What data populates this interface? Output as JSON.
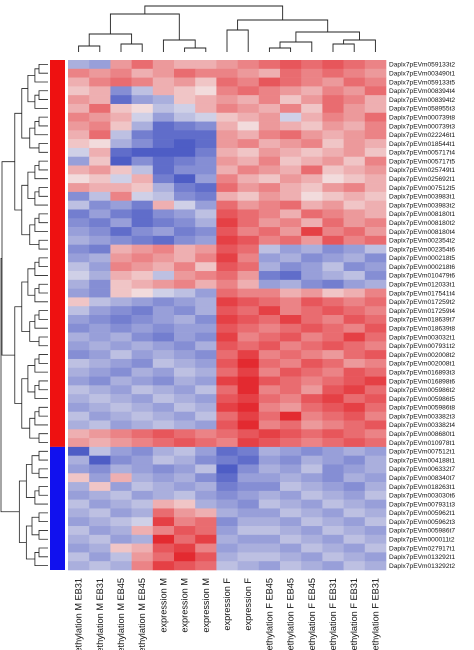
{
  "chart_data": {
    "type": "heatmap",
    "title": "",
    "columns": [
      "methylation M EB31",
      "methylation M EB31",
      "methylation M EB45",
      "methylation M EB45",
      "expression M",
      "expression M",
      "expression M",
      "expression F",
      "expression F",
      "methylation F EB45",
      "methylation F EB45",
      "methylation F EB45",
      "methylation F EB31",
      "methylation F EB31",
      "methylation F EB31"
    ],
    "rows": [
      "Daplx7pEVm059133t2",
      "Daplx7pEVm003490t1",
      "Daplx7pEVm059133t5",
      "Daplx7pEVm008394t4",
      "Daplx7pEVm008394t2",
      "Daplx7pEVm058955t3",
      "Daplx7pEVm000739t8",
      "Daplx7pEVm000739t3",
      "Daplx7pEVm022246t1",
      "Daplx7pEVm018544t1",
      "Daplx7pEVm005717t4",
      "Daplx7pEVm005717t5",
      "Daplx7pEVm025749t1",
      "Daplx7pEVm025692t1",
      "Daplx7pEVm007512t5",
      "Daplx7pEVm003983t1",
      "Daplx7pEVm003983t2",
      "Daplx7pEVm008180t1",
      "Daplx7pEVm008180t2",
      "Daplx7pEVm008180t4",
      "Daplx7pEVm002354t2",
      "Daplx7pEVm002354t6",
      "Daplx7pEVm000218t5",
      "Daplx7pEVm000218t6",
      "Daplx7pEVm010479t6",
      "Daplx7pEVm012033t1",
      "Daplx7pEVm017541t4",
      "Daplx7pEVm017259t2",
      "Daplx7pEVm017259t4",
      "Daplx7pEVm018639t7",
      "Daplx7pEVm018639t8",
      "Daplx7pEVm003032t1",
      "Daplx7pEVm007931t2",
      "Daplx7pEVm002008t2",
      "Daplx7pEVm002008t1",
      "Daplx7pEVm016893t3",
      "Daplx7pEVm016898t6",
      "Daplx7pEVm005986t2",
      "Daplx7pEVm005986t5",
      "Daplx7pEVm005986t8",
      "Daplx7pEVm003382t3",
      "Daplx7pEVm003382t4",
      "Daplx7pEVm008680t1",
      "Daplx7pEVm010978t1",
      "Daplx7pEVm007512t1",
      "Daplx7pEVm004188t1",
      "Daplx7pEVm006332t7",
      "Daplx7pEVm008340t7",
      "Daplx7pEVm018263t1",
      "Daplx7pEVm003030t6",
      "Daplx7pEVm007931t3",
      "Daplx7pEVm005962t1",
      "Daplx7pEVm005962t3",
      "Daplx7pEVm005986t7",
      "Daplx7pEVm000011t2",
      "Daplx7pEVm027917t1",
      "Daplx7pEVm013292t1",
      "Daplx7pEVm013292t2"
    ],
    "row_groups": [
      {
        "color": "#ee1111",
        "first_row": 0,
        "last_row": 43
      },
      {
        "color": "#1111ee",
        "first_row": 44,
        "last_row": 57
      }
    ],
    "colorscale": {
      "low": "#3b4cc0",
      "mid": "#f4f1f1",
      "high": "#e1141a"
    },
    "values": [
      [
        -0.4,
        -0.5,
        0.4,
        0.6,
        0.4,
        0.3,
        0.3,
        0.4,
        0.5,
        0.6,
        0.7,
        0.6,
        0.7,
        0.6,
        0.5
      ],
      [
        0.5,
        0.4,
        0.5,
        0.3,
        0.4,
        0.6,
        0.5,
        0.5,
        0.4,
        0.3,
        0.6,
        0.5,
        0.6,
        0.5,
        0.4
      ],
      [
        0.3,
        0.5,
        0.6,
        0.5,
        0.3,
        0.4,
        0.2,
        0.6,
        0.5,
        0.7,
        0.6,
        0.5,
        0.4,
        0.6,
        0.5
      ],
      [
        0.2,
        0.3,
        -0.6,
        -0.3,
        0.3,
        0.2,
        0.1,
        0.5,
        0.6,
        0.5,
        0.4,
        0.3,
        0.5,
        0.4,
        0.6
      ],
      [
        0.4,
        0.3,
        -0.8,
        -0.5,
        -0.4,
        0.2,
        0.3,
        0.4,
        0.3,
        0.5,
        0.2,
        0.4,
        0.6,
        0.5,
        0.3
      ],
      [
        0.3,
        0.6,
        0.2,
        0.1,
        -0.3,
        -0.2,
        0.3,
        0.5,
        0.4,
        0.3,
        0.5,
        0.2,
        0.6,
        0.4,
        0.3
      ],
      [
        0.5,
        0.4,
        0.3,
        -0.2,
        -0.5,
        -0.3,
        -0.2,
        0.2,
        0.3,
        0.4,
        -0.2,
        0.3,
        0.5,
        0.4,
        0.6
      ],
      [
        0.4,
        0.5,
        0.2,
        -0.4,
        -0.8,
        -0.7,
        -0.6,
        0.3,
        0.1,
        0.4,
        0.3,
        0.2,
        0.4,
        0.3,
        0.5
      ],
      [
        0.3,
        0.6,
        -0.3,
        -0.7,
        -0.8,
        -0.8,
        -0.8,
        0.4,
        0.3,
        0.5,
        0.6,
        0.4,
        0.3,
        0.4,
        0.5
      ],
      [
        0.2,
        0.1,
        -0.4,
        -0.6,
        -0.8,
        -0.9,
        -0.8,
        0.4,
        0.5,
        0.3,
        0.4,
        0.5,
        0.2,
        0.4,
        0.3
      ],
      [
        -0.2,
        0.3,
        -0.8,
        -0.9,
        -0.9,
        -0.9,
        -0.7,
        0.3,
        0.2,
        0.4,
        0.3,
        0.2,
        0.3,
        0.4,
        0.2
      ],
      [
        -0.5,
        0.2,
        -0.9,
        -0.6,
        -0.8,
        -0.7,
        -0.6,
        0.4,
        0.3,
        0.5,
        0.2,
        0.3,
        0.4,
        0.2,
        0.5
      ],
      [
        0.3,
        0.4,
        0.2,
        -0.3,
        -0.8,
        -0.6,
        -0.6,
        0.3,
        0.5,
        0.4,
        0.3,
        0.6,
        0.2,
        0.3,
        0.4
      ],
      [
        0.1,
        0.2,
        -0.2,
        0.3,
        -0.7,
        -0.9,
        -0.5,
        0.5,
        0.3,
        0.2,
        0.4,
        0.3,
        0.1,
        0.2,
        0.3
      ],
      [
        0.4,
        0.3,
        0.3,
        0.2,
        -0.4,
        -0.7,
        -0.8,
        0.6,
        0.4,
        0.5,
        0.3,
        0.2,
        0.4,
        0.5,
        0.3
      ],
      [
        -0.6,
        -0.3,
        0.5,
        -0.2,
        -0.3,
        -0.6,
        -0.7,
        0.3,
        0.2,
        0.4,
        0.3,
        0.1,
        0.2,
        0.3,
        0.2
      ],
      [
        -0.3,
        -0.6,
        -0.5,
        -0.7,
        0.3,
        -0.2,
        -0.5,
        0.6,
        0.4,
        0.5,
        0.6,
        0.3,
        0.4,
        0.2,
        0.3
      ],
      [
        -0.7,
        -0.5,
        -0.7,
        -0.8,
        -0.6,
        -0.5,
        -0.3,
        0.7,
        0.6,
        0.5,
        0.3,
        0.6,
        0.5,
        0.4,
        0.3
      ],
      [
        -0.6,
        -0.7,
        -0.5,
        -0.8,
        -0.7,
        -0.6,
        -0.4,
        0.8,
        0.6,
        0.4,
        0.5,
        0.3,
        0.6,
        0.4,
        0.5
      ],
      [
        -0.5,
        -0.6,
        -0.8,
        -0.6,
        -0.5,
        -0.7,
        -0.6,
        0.7,
        0.5,
        0.6,
        0.4,
        0.8,
        0.5,
        0.6,
        0.4
      ],
      [
        -0.4,
        -0.5,
        -0.6,
        -0.7,
        -0.8,
        -0.6,
        -0.5,
        0.8,
        0.7,
        0.5,
        0.6,
        0.4,
        0.7,
        0.5,
        0.6
      ],
      [
        -0.6,
        -0.7,
        0.3,
        0.4,
        0.5,
        0.3,
        0.4,
        0.7,
        0.6,
        -0.3,
        -0.5,
        -0.4,
        -0.6,
        -0.5,
        -0.3
      ],
      [
        -0.5,
        -0.4,
        0.4,
        0.5,
        0.4,
        0.3,
        0.5,
        0.8,
        0.5,
        -0.5,
        -0.4,
        -0.6,
        -0.5,
        -0.4,
        -0.6
      ],
      [
        -0.3,
        -0.5,
        0.5,
        0.4,
        0.3,
        0.5,
        0.2,
        0.7,
        0.6,
        -0.4,
        -0.6,
        -0.5,
        -0.3,
        -0.6,
        -0.5
      ],
      [
        -0.2,
        -0.4,
        0.3,
        0.2,
        -0.3,
        0.4,
        0.5,
        0.6,
        0.4,
        -0.7,
        -0.8,
        -0.5,
        -0.4,
        -0.3,
        -0.6
      ],
      [
        -0.4,
        -0.6,
        0.2,
        0.3,
        0.4,
        0.5,
        0.3,
        0.5,
        0.3,
        -0.5,
        -0.4,
        -0.6,
        -0.7,
        -0.5,
        -0.4
      ],
      [
        -0.5,
        -0.6,
        0.2,
        0.1,
        -0.2,
        -0.3,
        -0.5,
        0.6,
        0.5,
        0.5,
        0.3,
        0.4,
        0.2,
        0.3,
        0.5
      ],
      [
        0.2,
        -0.3,
        -0.4,
        -0.5,
        -0.6,
        -0.5,
        -0.4,
        0.8,
        0.7,
        0.6,
        0.5,
        0.7,
        0.6,
        0.5,
        0.6
      ],
      [
        -0.3,
        -0.5,
        -0.6,
        -0.7,
        -0.5,
        -0.6,
        -0.4,
        0.7,
        0.6,
        0.8,
        0.5,
        0.6,
        0.7,
        0.6,
        0.5
      ],
      [
        -0.5,
        -0.6,
        -0.7,
        -0.6,
        -0.5,
        -0.4,
        -0.6,
        0.8,
        0.7,
        0.6,
        0.8,
        0.6,
        0.5,
        0.7,
        0.6
      ],
      [
        -0.6,
        -0.5,
        -0.6,
        -0.5,
        -0.6,
        -0.5,
        -0.5,
        0.7,
        0.6,
        0.5,
        0.6,
        0.7,
        0.6,
        0.5,
        0.7
      ],
      [
        -0.4,
        -0.5,
        -0.4,
        -0.6,
        -0.7,
        -0.5,
        -0.6,
        0.8,
        0.5,
        0.6,
        0.7,
        0.5,
        0.6,
        0.8,
        0.6
      ],
      [
        -0.5,
        -0.4,
        -0.5,
        -0.4,
        -0.5,
        -0.6,
        -0.4,
        0.7,
        0.6,
        0.7,
        0.5,
        0.6,
        0.7,
        0.6,
        0.5
      ],
      [
        -0.6,
        -0.5,
        -0.3,
        -0.5,
        -0.4,
        -0.5,
        -0.6,
        0.6,
        0.8,
        0.5,
        0.6,
        0.5,
        0.4,
        0.6,
        0.7
      ],
      [
        -0.3,
        -0.4,
        -0.5,
        -0.6,
        -0.3,
        -0.4,
        -0.5,
        0.7,
        0.9,
        0.6,
        0.5,
        0.7,
        0.6,
        0.4,
        0.5
      ],
      [
        -0.4,
        -0.5,
        -0.6,
        -0.4,
        -0.5,
        -0.3,
        -0.4,
        0.6,
        0.8,
        0.5,
        0.7,
        0.6,
        0.5,
        0.7,
        0.6
      ],
      [
        -0.5,
        -0.6,
        -0.4,
        -0.5,
        -0.6,
        -0.4,
        -0.5,
        0.8,
        0.9,
        0.7,
        0.6,
        0.5,
        0.6,
        0.7,
        0.8
      ],
      [
        -0.3,
        -0.4,
        -0.5,
        -0.3,
        -0.4,
        -0.5,
        -0.3,
        0.6,
        0.9,
        0.5,
        0.6,
        0.4,
        0.7,
        0.8,
        0.6
      ],
      [
        -0.4,
        -0.3,
        -0.4,
        -0.5,
        -0.3,
        -0.4,
        -0.5,
        0.7,
        0.8,
        0.6,
        0.5,
        0.7,
        0.8,
        0.6,
        0.7
      ],
      [
        -0.5,
        -0.4,
        -0.3,
        -0.4,
        -0.5,
        -0.3,
        -0.4,
        0.8,
        0.9,
        0.5,
        0.4,
        0.6,
        0.7,
        0.8,
        0.6
      ],
      [
        -0.3,
        -0.5,
        -0.4,
        -0.3,
        -0.4,
        -0.5,
        -0.3,
        0.6,
        0.8,
        0.6,
        0.9,
        0.5,
        0.6,
        0.7,
        0.5
      ],
      [
        -0.4,
        -0.3,
        -0.5,
        -0.4,
        -0.3,
        -0.4,
        -0.5,
        0.7,
        0.9,
        0.5,
        0.6,
        0.4,
        0.5,
        0.6,
        0.7
      ],
      [
        0.3,
        0.4,
        0.5,
        0.6,
        0.7,
        0.6,
        0.5,
        0.6,
        0.7,
        0.8,
        0.7,
        0.6,
        0.7,
        0.6,
        0.5
      ],
      [
        0.4,
        0.3,
        0.4,
        0.5,
        0.6,
        0.7,
        0.6,
        0.5,
        0.8,
        0.7,
        0.6,
        0.5,
        0.6,
        0.7,
        0.6
      ],
      [
        -0.9,
        -0.3,
        -0.5,
        -0.6,
        -0.4,
        -0.3,
        -0.5,
        -0.8,
        -0.7,
        -0.4,
        -0.5,
        -0.6,
        -0.5,
        -0.4,
        -0.5
      ],
      [
        -0.4,
        -0.9,
        -0.6,
        -0.5,
        -0.3,
        -0.4,
        -0.6,
        -0.7,
        -0.8,
        -0.5,
        -0.6,
        -0.4,
        -0.5,
        -0.6,
        -0.4
      ],
      [
        -0.5,
        -0.6,
        -0.4,
        -0.5,
        -0.6,
        -0.5,
        -0.3,
        -0.9,
        -0.6,
        -0.4,
        -0.5,
        -0.3,
        -0.6,
        -0.5,
        -0.4
      ],
      [
        0.2,
        -0.5,
        0.3,
        -0.4,
        -0.5,
        -0.4,
        -0.6,
        -0.8,
        -0.5,
        -0.5,
        -0.4,
        -0.5,
        -0.6,
        -0.4,
        -0.5
      ],
      [
        -0.4,
        0.2,
        -0.5,
        -0.3,
        -0.4,
        -0.5,
        -0.4,
        -0.7,
        -0.6,
        -0.6,
        -0.3,
        -0.4,
        -0.5,
        -0.6,
        -0.4
      ],
      [
        -0.5,
        -0.4,
        -0.3,
        -0.5,
        -0.4,
        -0.3,
        -0.5,
        -0.6,
        -0.5,
        -0.4,
        -0.5,
        -0.3,
        -0.4,
        -0.5,
        -0.3
      ],
      [
        -0.3,
        -0.5,
        -0.4,
        -0.3,
        0.3,
        0.2,
        -0.4,
        -0.5,
        -0.6,
        -0.3,
        -0.4,
        -0.5,
        -0.3,
        -0.4,
        -0.5
      ],
      [
        -0.4,
        -0.3,
        -0.5,
        -0.4,
        0.6,
        0.4,
        0.3,
        -0.4,
        -0.5,
        -0.5,
        -0.3,
        -0.4,
        -0.5,
        -0.3,
        -0.4
      ],
      [
        -0.5,
        -0.4,
        -0.3,
        -0.2,
        0.8,
        0.5,
        0.6,
        -0.6,
        -0.4,
        -0.4,
        -0.5,
        -0.3,
        -0.4,
        -0.5,
        -0.3
      ],
      [
        -0.3,
        -0.5,
        -0.4,
        0.3,
        0.5,
        0.7,
        0.6,
        -0.5,
        -0.3,
        -0.3,
        -0.4,
        -0.5,
        -0.3,
        -0.4,
        -0.5
      ],
      [
        -0.4,
        -0.3,
        -0.5,
        -0.4,
        0.9,
        0.6,
        0.8,
        -0.4,
        -0.5,
        -0.5,
        -0.3,
        -0.4,
        -0.5,
        -0.3,
        -0.4
      ],
      [
        -0.5,
        -0.4,
        0.2,
        0.3,
        0.7,
        0.8,
        0.5,
        -0.5,
        -0.4,
        -0.4,
        -0.5,
        -0.3,
        -0.4,
        -0.5,
        -0.3
      ],
      [
        -0.3,
        -0.5,
        -0.3,
        0.4,
        0.6,
        0.9,
        0.7,
        -0.4,
        -0.3,
        -0.3,
        -0.4,
        -0.5,
        -0.3,
        -0.4,
        -0.5
      ],
      [
        -0.4,
        -0.3,
        -0.4,
        0.5,
        0.8,
        0.7,
        0.6,
        -0.3,
        -0.4,
        -0.5,
        -0.3,
        -0.4,
        -0.5,
        -0.3,
        -0.4
      ]
    ]
  }
}
